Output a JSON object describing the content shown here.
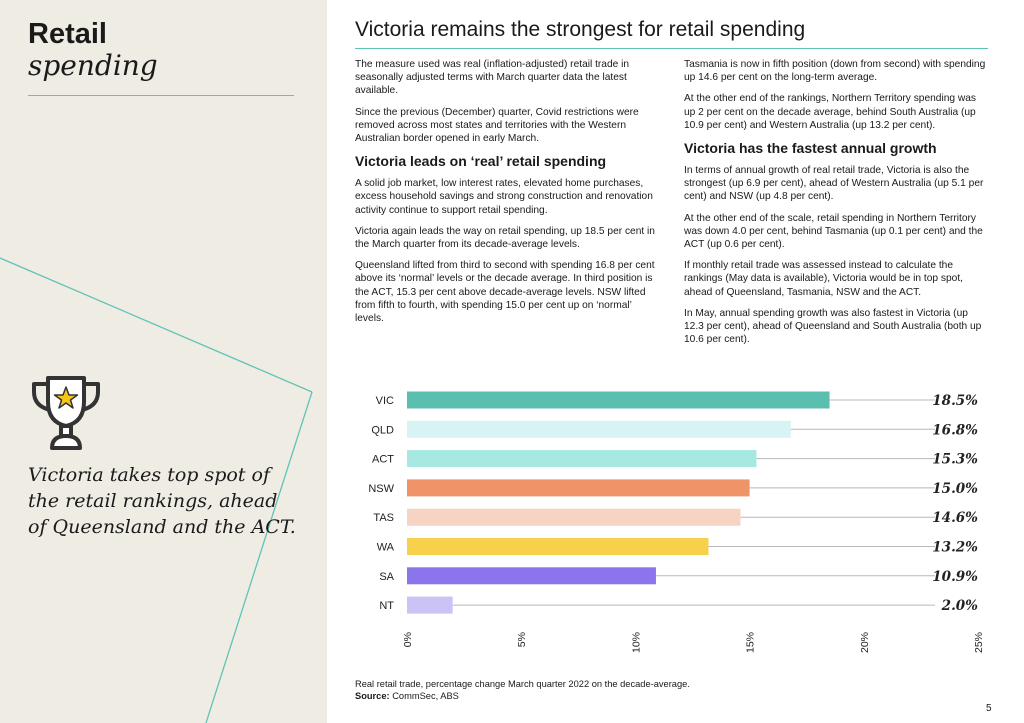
{
  "sidebar": {
    "title_line1": "Retail",
    "title_line2": "spending",
    "quote": "Victoria takes top spot of the retail rankings, ahead of Queensland and the ACT.",
    "trophy_icon": "trophy-icon",
    "accent_color": "#5fc4b6"
  },
  "main": {
    "title": "Victoria remains the strongest for retail spending",
    "col1": {
      "p1": "The measure used was real (inflation-adjusted) retail trade in seasonally adjusted terms with March quarter data the latest available.",
      "p2": "Since the previous (December) quarter, Covid restrictions were removed across most states and territories with the Western Australian border opened in early March.",
      "h1": "Victoria leads on ‘real’ retail spending",
      "p3": "A solid job market, low interest rates, elevated home purchases, excess household savings and strong construction and renovation activity continue to support retail spending.",
      "p4": "Victoria again leads the way on retail spending, up 18.5 per cent in the March quarter from its decade-average levels.",
      "p5": "Queensland lifted from third to second with spending 16.8 per cent above its ‘normal’ levels or the decade average. In third position is the ACT, 15.3 per cent above decade-average levels. NSW lifted from fifth to fourth, with spending 15.0 per cent up on ‘normal’ levels."
    },
    "col2": {
      "p1": "Tasmania is now in fifth position (down from second) with spending up 14.6 per cent on the long-term average.",
      "p2": "At the other end of the rankings, Northern Territory spending was up 2 per cent on the decade average, behind South Australia (up 10.9 per cent) and Western Australia (up 13.2 per cent).",
      "h1": "Victoria has the fastest annual growth",
      "p3": "In terms of annual growth of real retail trade, Victoria is also the strongest (up 6.9 per cent), ahead of Western Australia (up 5.1 per cent) and NSW (up 4.8 per cent).",
      "p4": "At the other end of the scale, retail spending in Northern Territory was down 4.0 per cent, behind Tasmania (up 0.1 per cent) and the ACT (up 0.6 per cent).",
      "p5": "If monthly retail trade was assessed instead to calculate the rankings (May data is available), Victoria would be in top spot, ahead of Queensland, Tasmania, NSW and the ACT.",
      "p6": "In May, annual spending growth was also fastest in Victoria (up 12.3 per cent), ahead of Queensland and South Australia (both up 10.6 per cent)."
    }
  },
  "chart_data": {
    "type": "bar",
    "orientation": "horizontal",
    "categories": [
      "VIC",
      "QLD",
      "ACT",
      "NSW",
      "TAS",
      "WA",
      "SA",
      "NT"
    ],
    "values": [
      18.5,
      16.8,
      15.3,
      15.0,
      14.6,
      13.2,
      10.9,
      2.0
    ],
    "value_labels": [
      "18.5%",
      "16.8%",
      "15.3%",
      "15.0%",
      "14.6%",
      "13.2%",
      "10.9%",
      "2.0%"
    ],
    "colors": [
      "#5bbfb0",
      "#d7f3f3",
      "#a8e8e3",
      "#ef9468",
      "#f6d3c2",
      "#f7d14c",
      "#8c74ec",
      "#cbc2f5"
    ],
    "xlim": [
      0,
      25
    ],
    "xticks": [
      "0%",
      "5%",
      "10%",
      "15%",
      "20%",
      "25%"
    ],
    "xtick_values": [
      0,
      5,
      10,
      15,
      20,
      25
    ],
    "grid": false
  },
  "caption": {
    "text": "Real retail trade, percentage change March quarter 2022 on the decade-average.",
    "source_label": "Source:",
    "source_value": " CommSec, ABS"
  },
  "page_number": "5"
}
